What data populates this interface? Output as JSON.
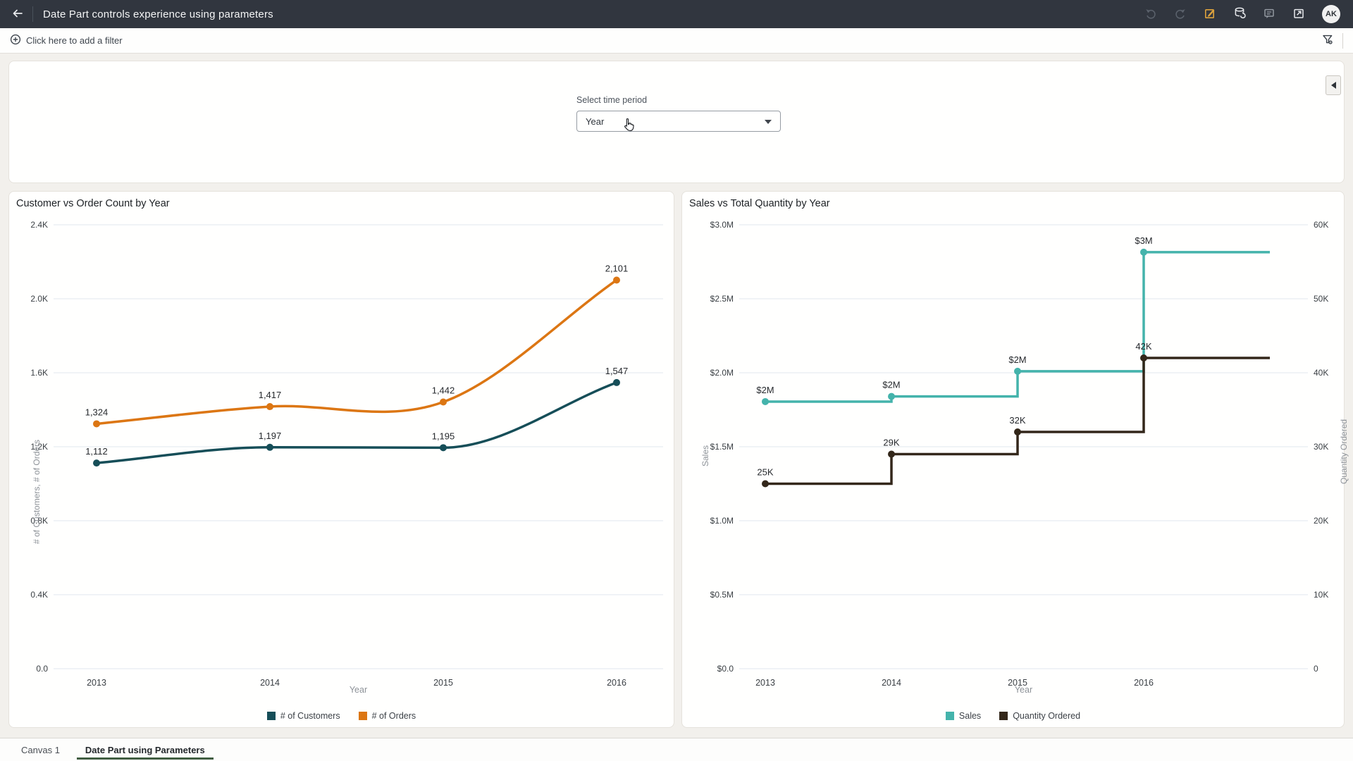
{
  "header": {
    "title": "Date Part controls experience using parameters",
    "avatar_initials": "AK",
    "toolbar_icons": [
      "back-arrow",
      "undo",
      "redo",
      "edit",
      "refresh-data",
      "comment",
      "present",
      "avatar"
    ]
  },
  "filter_bar": {
    "add_filter_label": "Click here to add a filter",
    "right_icons": [
      "filter-settings"
    ]
  },
  "parameter_panel": {
    "label": "Select time period",
    "value": "Year"
  },
  "tabs": [
    {
      "label": "Canvas 1",
      "active": false
    },
    {
      "label": "Date Part using Parameters",
      "active": true
    }
  ],
  "colors": {
    "topbar_bg": "#31363f",
    "edit_icon_accent": "#dca23d",
    "tab_active_underline": "#415e42",
    "customers_series": "#164e58",
    "orders_series": "#dc7613",
    "sales_series": "#44b3ab",
    "quantity_series": "#33271a",
    "gridline": "#e2e7ee"
  },
  "chart_data": [
    {
      "type": "line",
      "title": "Customer vs Order Count by Year",
      "xlabel": "Year",
      "ylabel": "# of Customers, # of Orders",
      "x": [
        "2013",
        "2014",
        "2015",
        "2016"
      ],
      "ylim": [
        0,
        2400
      ],
      "yticks": [
        "2.4K",
        "2.0K",
        "1.6K",
        "1.2K",
        "0.8K",
        "0.4K",
        "0.0"
      ],
      "grid": true,
      "legend_position": "bottom",
      "series": [
        {
          "name": "# of Customers",
          "color": "#164e58",
          "values": [
            1112,
            1197,
            1195,
            1547
          ],
          "labels": [
            "1,112",
            "1,197",
            "1,195",
            "1,547"
          ]
        },
        {
          "name": "# of Orders",
          "color": "#dc7613",
          "values": [
            1324,
            1417,
            1442,
            2101
          ],
          "labels": [
            "1,324",
            "1,417",
            "1,442",
            "2,101"
          ]
        }
      ]
    },
    {
      "type": "step",
      "title": "Sales vs Total Quantity by Year",
      "xlabel": "Year",
      "x": [
        "2013",
        "2014",
        "2015",
        "2016"
      ],
      "y_left": {
        "label": "Sales",
        "lim": [
          0,
          3000000
        ],
        "ticks": [
          "$3.0M",
          "$2.5M",
          "$2.0M",
          "$1.5M",
          "$1.0M",
          "$0.5M",
          "$0.0"
        ]
      },
      "y_right": {
        "label": "Quantity Ordered",
        "lim": [
          0,
          60000
        ],
        "ticks": [
          "60K",
          "50K",
          "40K",
          "30K",
          "20K",
          "10K",
          "0"
        ]
      },
      "grid": true,
      "legend_position": "bottom",
      "series": [
        {
          "name": "Sales",
          "axis": "left",
          "color": "#44b3ab",
          "values": [
            1805000,
            1840000,
            2010000,
            2815000
          ],
          "labels": [
            "$2M",
            "$2M",
            "$2M",
            "$3M"
          ]
        },
        {
          "name": "Quantity Ordered",
          "axis": "right",
          "color": "#33271a",
          "values": [
            25000,
            29000,
            32000,
            42000
          ],
          "labels": [
            "25K",
            "29K",
            "32K",
            "42K"
          ]
        }
      ]
    }
  ]
}
